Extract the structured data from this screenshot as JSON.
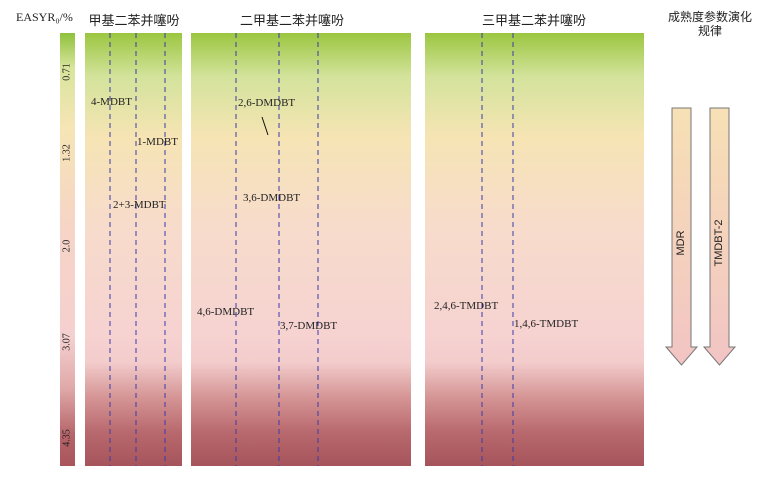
{
  "axis_title": "EASYR₀/%",
  "maturity_levels": [
    "0.71",
    "1.32",
    "2.0",
    "3.07",
    "4.35"
  ],
  "panels": [
    {
      "title": "甲基二苯并噻吩"
    },
    {
      "title": "二甲基二苯并噻吩"
    },
    {
      "title": "三甲基二苯并噻吩"
    }
  ],
  "side_title": "成熟度参数演化规律",
  "arrows": [
    {
      "label": "MDR"
    },
    {
      "label": "TMDBT-2"
    }
  ],
  "peak_labels": {
    "mdbt4": "4-MDBT",
    "mdbt1": "1-MDBT",
    "mdbt23": "2+3-MDBT",
    "dmdbt26": "2,6-DMDBT",
    "dmdbt36": "3,6-DMDBT",
    "dmdbt46": "4,6-DMDBT",
    "dmdbt37": "3,7-DMDBT",
    "tmdbt246": "2,4,6-TMDBT",
    "tmdbt146": "1,4,6-TMDBT"
  },
  "colors": {
    "top_green": "#9bc640",
    "middle_pink": "#f6d2d1",
    "bottom_red": "#a5545b",
    "arrow_fill_top": "#f7e0b5",
    "arrow_fill_bottom": "#f2c4c4",
    "trace": "#111111",
    "guide_line": "#3a3aa8"
  }
}
